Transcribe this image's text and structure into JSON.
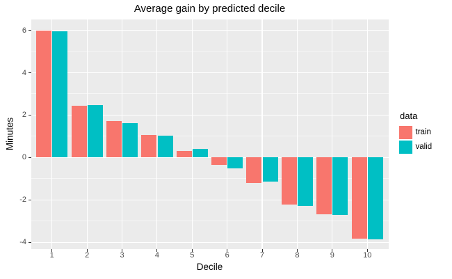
{
  "title": "Average gain by predicted decile",
  "x_axis": {
    "label": "Decile",
    "tick_labels": [
      "1",
      "2",
      "3",
      "4",
      "5",
      "6",
      "7",
      "8",
      "9",
      "10"
    ]
  },
  "y_axis": {
    "label": "Minutes",
    "tick_labels": [
      "6",
      "4",
      "2",
      "0",
      "-2",
      "-4"
    ],
    "major_values": [
      6,
      4,
      2,
      0,
      -2,
      -4
    ],
    "minor_values": [
      5,
      3,
      1,
      -1,
      -3
    ]
  },
  "legend": {
    "title": "data",
    "entries": [
      {
        "label": "train",
        "color": "#F8766D"
      },
      {
        "label": "valid",
        "color": "#00BFC4"
      }
    ]
  },
  "colors": {
    "panel_background": "#EBEBEB",
    "gridline": "#FFFFFF",
    "tick_text": "#4D4D4D",
    "train": "#F8766D",
    "valid": "#00BFC4"
  },
  "chart_data": {
    "type": "bar",
    "title": "Average gain by predicted decile",
    "xlabel": "Decile",
    "ylabel": "Minutes",
    "categories": [
      1,
      2,
      3,
      4,
      5,
      6,
      7,
      8,
      9,
      10
    ],
    "series": [
      {
        "name": "train",
        "color": "#F8766D",
        "values": [
          6.0,
          2.45,
          1.71,
          1.07,
          0.32,
          -0.36,
          -1.2,
          -2.22,
          -2.69,
          -3.82
        ]
      },
      {
        "name": "valid",
        "color": "#00BFC4",
        "values": [
          5.95,
          2.48,
          1.62,
          1.03,
          0.4,
          -0.51,
          -1.13,
          -2.28,
          -2.7,
          -3.86
        ]
      }
    ],
    "ylim": [
      -4.3,
      6.51
    ],
    "grid": true,
    "legend_position": "right",
    "bar_layout": "dodged"
  }
}
